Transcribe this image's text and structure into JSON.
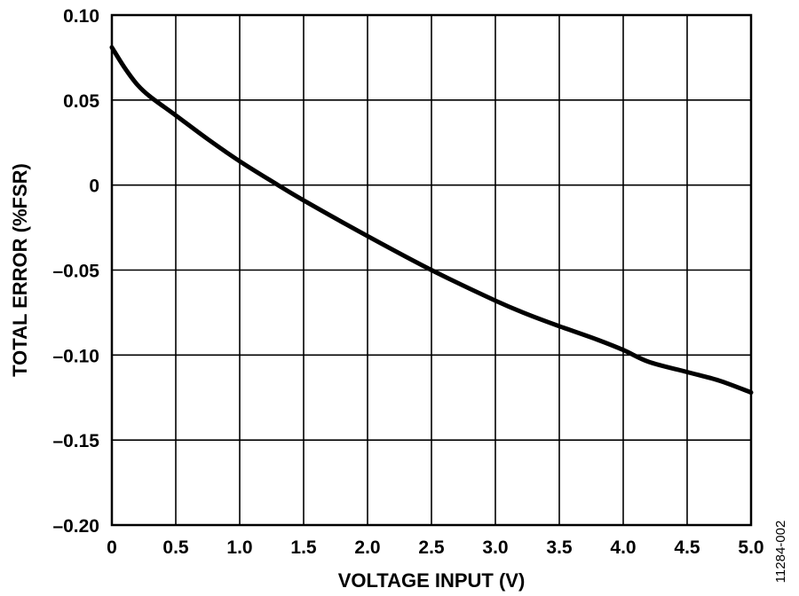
{
  "chart_data": {
    "type": "line",
    "xlabel": "VOLTAGE INPUT (V)",
    "ylabel": "TOTAL ERROR (%FSR)",
    "xlim": [
      0,
      5.0
    ],
    "ylim": [
      -0.2,
      0.1
    ],
    "grid": true,
    "x_ticks": [
      0,
      0.5,
      1.0,
      1.5,
      2.0,
      2.5,
      3.0,
      3.5,
      4.0,
      4.5,
      5.0
    ],
    "x_tick_labels": [
      "0",
      "0.5",
      "1.0",
      "1.5",
      "2.0",
      "2.5",
      "3.0",
      "3.5",
      "4.0",
      "4.5",
      "5.0"
    ],
    "y_ticks": [
      0.1,
      0.05,
      0,
      -0.05,
      -0.1,
      -0.15,
      -0.2
    ],
    "y_tick_labels": [
      "0.10",
      "0.05",
      "0",
      "–0.05",
      "–0.10",
      "–0.15",
      "–0.20"
    ],
    "series": [
      {
        "x": [
          0,
          0.1,
          0.2,
          0.3,
          0.5,
          0.75,
          1.0,
          1.3,
          1.5,
          2.0,
          2.5,
          3.0,
          3.25,
          3.5,
          3.8,
          4.0,
          4.2,
          4.5,
          4.75,
          5.0
        ],
        "y": [
          0.081,
          0.069,
          0.059,
          0.052,
          0.041,
          0.027,
          0.014,
          0.0,
          -0.009,
          -0.03,
          -0.05,
          -0.068,
          -0.076,
          -0.083,
          -0.091,
          -0.097,
          -0.104,
          -0.11,
          -0.115,
          -0.122
        ],
        "color": "#000000"
      }
    ]
  },
  "figure_id": "11284-002"
}
